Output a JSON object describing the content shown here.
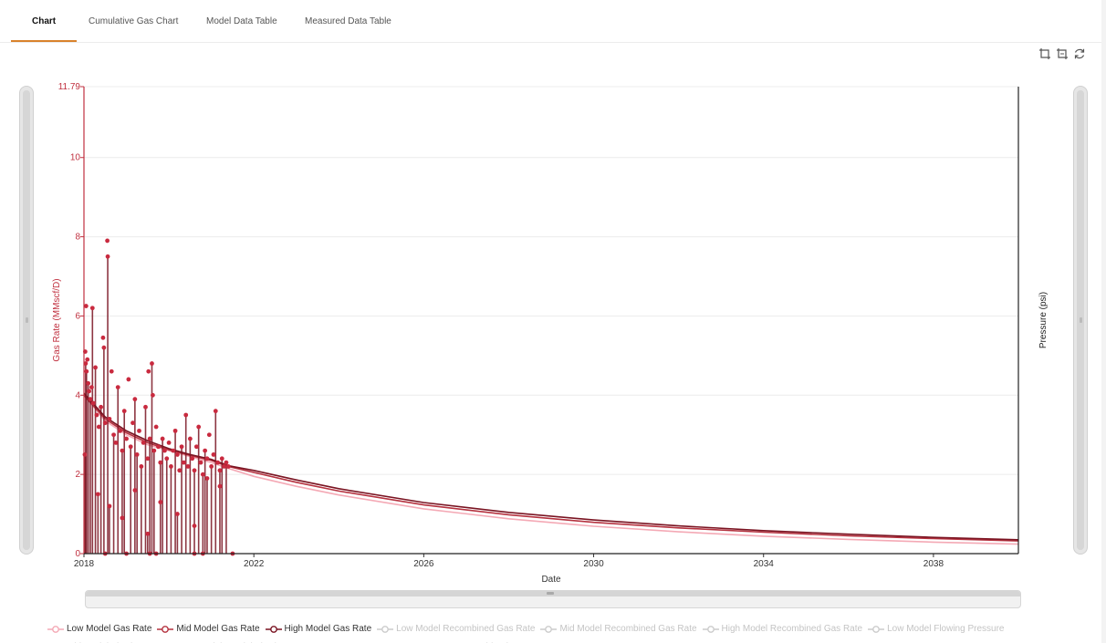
{
  "tabs": [
    {
      "label": "Chart",
      "active": true
    },
    {
      "label": "Cumulative Gas Chart",
      "active": false
    },
    {
      "label": "Model Data Table",
      "active": false
    },
    {
      "label": "Measured Data Table",
      "active": false
    }
  ],
  "toolbar": {
    "icons": [
      "zoom-in-icon",
      "zoom-out-icon",
      "refresh-icon"
    ]
  },
  "colors": {
    "low": "#f4a9b5",
    "mid": "#b5323f",
    "high": "#7a1422",
    "data": "#c92a3f",
    "inactive": "#cccccc",
    "axis_left": "#c0303f"
  },
  "chart_data": {
    "type": "line",
    "xlabel": "Date",
    "ylabel_left": "Gas Rate (MMscf/D)",
    "ylabel_right": "Pressure (psi)",
    "x_range": [
      "2018",
      "2040"
    ],
    "ylim": [
      0,
      11.79
    ],
    "x_ticks": [
      "2018",
      "2022",
      "2026",
      "2030",
      "2034",
      "2038"
    ],
    "y_ticks": [
      "0",
      "2",
      "4",
      "6",
      "8",
      "10",
      "11.79"
    ],
    "grid": true,
    "legend_placement": "bottom",
    "series": [
      {
        "name": "Low Model Gas Rate",
        "style": "line",
        "visible": true,
        "x": [
          2018.0,
          2018.5,
          2019,
          2019.5,
          2020,
          2020.5,
          2021,
          2021.4,
          2022,
          2023,
          2024,
          2026,
          2028,
          2030,
          2032,
          2034,
          2036,
          2038,
          2040
        ],
        "y": [
          4.0,
          3.35,
          3.0,
          2.75,
          2.6,
          2.45,
          2.3,
          2.15,
          1.95,
          1.7,
          1.48,
          1.13,
          0.88,
          0.69,
          0.55,
          0.44,
          0.36,
          0.29,
          0.24
        ]
      },
      {
        "name": "Mid Model Gas Rate",
        "style": "line",
        "visible": true,
        "x": [
          2018.0,
          2018.5,
          2019,
          2019.5,
          2020,
          2020.5,
          2021,
          2021.4,
          2022,
          2023,
          2024,
          2026,
          2028,
          2030,
          2032,
          2034,
          2036,
          2038,
          2040
        ],
        "y": [
          4.0,
          3.4,
          3.05,
          2.8,
          2.62,
          2.48,
          2.35,
          2.2,
          2.05,
          1.8,
          1.58,
          1.23,
          0.98,
          0.79,
          0.65,
          0.54,
          0.45,
          0.38,
          0.32
        ]
      },
      {
        "name": "High Model Gas Rate",
        "style": "line",
        "visible": true,
        "x": [
          2018.0,
          2018.5,
          2019,
          2019.5,
          2020,
          2020.5,
          2021,
          2021.4,
          2022,
          2023,
          2024,
          2026,
          2028,
          2030,
          2032,
          2034,
          2036,
          2038,
          2040
        ],
        "y": [
          4.05,
          3.45,
          3.1,
          2.85,
          2.65,
          2.5,
          2.38,
          2.22,
          2.1,
          1.86,
          1.64,
          1.29,
          1.04,
          0.85,
          0.7,
          0.58,
          0.49,
          0.41,
          0.35
        ]
      },
      {
        "name": "Low Model Recombined Gas Rate",
        "visible": false
      },
      {
        "name": "Mid Model Recombined Gas Rate",
        "visible": false
      },
      {
        "name": "High Model Recombined Gas Rate",
        "visible": false
      },
      {
        "name": "Low Model Flowing Pressure",
        "visible": false
      },
      {
        "name": "Mid Model Flowing Pressure",
        "visible": false
      },
      {
        "name": "High Model Flowing Pressure",
        "visible": false
      },
      {
        "name": "Data Gas Rate",
        "style": "scatter",
        "visible": true,
        "points": [
          [
            2018.03,
            5.1
          ],
          [
            2018.04,
            4.8
          ],
          [
            2018.05,
            6.25
          ],
          [
            2018.06,
            4.6
          ],
          [
            2018.08,
            4.9
          ],
          [
            2018.1,
            4.3
          ],
          [
            2018.12,
            4.1
          ],
          [
            2018.15,
            3.9
          ],
          [
            2018.18,
            4.2
          ],
          [
            2018.2,
            6.2
          ],
          [
            2018.22,
            3.8
          ],
          [
            2018.27,
            4.7
          ],
          [
            2018.3,
            3.5
          ],
          [
            2018.35,
            3.2
          ],
          [
            2018.4,
            3.7
          ],
          [
            2018.45,
            5.45
          ],
          [
            2018.47,
            5.2
          ],
          [
            2018.5,
            3.3
          ],
          [
            2018.55,
            7.9
          ],
          [
            2018.56,
            7.5
          ],
          [
            2018.6,
            3.4
          ],
          [
            2018.65,
            4.6
          ],
          [
            2018.7,
            3.0
          ],
          [
            2018.75,
            2.8
          ],
          [
            2018.8,
            4.2
          ],
          [
            2018.85,
            3.1
          ],
          [
            2018.9,
            2.6
          ],
          [
            2018.95,
            3.6
          ],
          [
            2019.0,
            2.9
          ],
          [
            2019.05,
            4.4
          ],
          [
            2019.1,
            2.7
          ],
          [
            2019.15,
            3.3
          ],
          [
            2019.2,
            3.9
          ],
          [
            2019.25,
            2.5
          ],
          [
            2019.3,
            3.1
          ],
          [
            2019.35,
            2.2
          ],
          [
            2019.4,
            2.8
          ],
          [
            2019.45,
            3.7
          ],
          [
            2019.5,
            2.4
          ],
          [
            2019.52,
            4.6
          ],
          [
            2019.55,
            2.9
          ],
          [
            2019.6,
            4.8
          ],
          [
            2019.62,
            4.0
          ],
          [
            2019.65,
            2.6
          ],
          [
            2019.7,
            3.2
          ],
          [
            2019.75,
            2.7
          ],
          [
            2019.8,
            2.3
          ],
          [
            2019.85,
            2.9
          ],
          [
            2019.9,
            2.6
          ],
          [
            2019.95,
            2.4
          ],
          [
            2020.0,
            2.8
          ],
          [
            2020.05,
            2.2
          ],
          [
            2020.1,
            2.6
          ],
          [
            2020.15,
            3.1
          ],
          [
            2020.2,
            2.5
          ],
          [
            2020.25,
            2.1
          ],
          [
            2020.3,
            2.7
          ],
          [
            2020.35,
            2.3
          ],
          [
            2020.4,
            3.5
          ],
          [
            2020.45,
            2.2
          ],
          [
            2020.5,
            2.9
          ],
          [
            2020.55,
            2.4
          ],
          [
            2020.6,
            2.1
          ],
          [
            2020.65,
            2.7
          ],
          [
            2020.7,
            3.2
          ],
          [
            2020.75,
            2.3
          ],
          [
            2020.8,
            2.0
          ],
          [
            2020.85,
            2.6
          ],
          [
            2020.9,
            2.4
          ],
          [
            2020.95,
            3.0
          ],
          [
            2021.0,
            2.2
          ],
          [
            2021.05,
            2.5
          ],
          [
            2021.1,
            3.6
          ],
          [
            2021.15,
            2.3
          ],
          [
            2021.2,
            2.1
          ],
          [
            2021.25,
            2.4
          ],
          [
            2021.3,
            2.2
          ],
          [
            2021.35,
            2.3
          ],
          [
            2021.4,
            2.2
          ],
          [
            2018.02,
            2.5
          ],
          [
            2018.33,
            1.5
          ],
          [
            2018.6,
            1.2
          ],
          [
            2018.9,
            0.9
          ],
          [
            2019.2,
            1.6
          ],
          [
            2019.5,
            0.5
          ],
          [
            2019.8,
            1.3
          ],
          [
            2020.2,
            1.0
          ],
          [
            2020.6,
            0.7
          ],
          [
            2020.9,
            1.9
          ],
          [
            2021.2,
            1.7
          ],
          [
            2018.5,
            0.0
          ],
          [
            2019.0,
            0.0
          ],
          [
            2019.55,
            0.0
          ],
          [
            2019.7,
            0.0
          ],
          [
            2020.6,
            0.0
          ],
          [
            2020.8,
            0.0
          ],
          [
            2021.5,
            0.0
          ]
        ]
      },
      {
        "name": "Data Recombined Gas Rate",
        "visible": false
      }
    ]
  }
}
